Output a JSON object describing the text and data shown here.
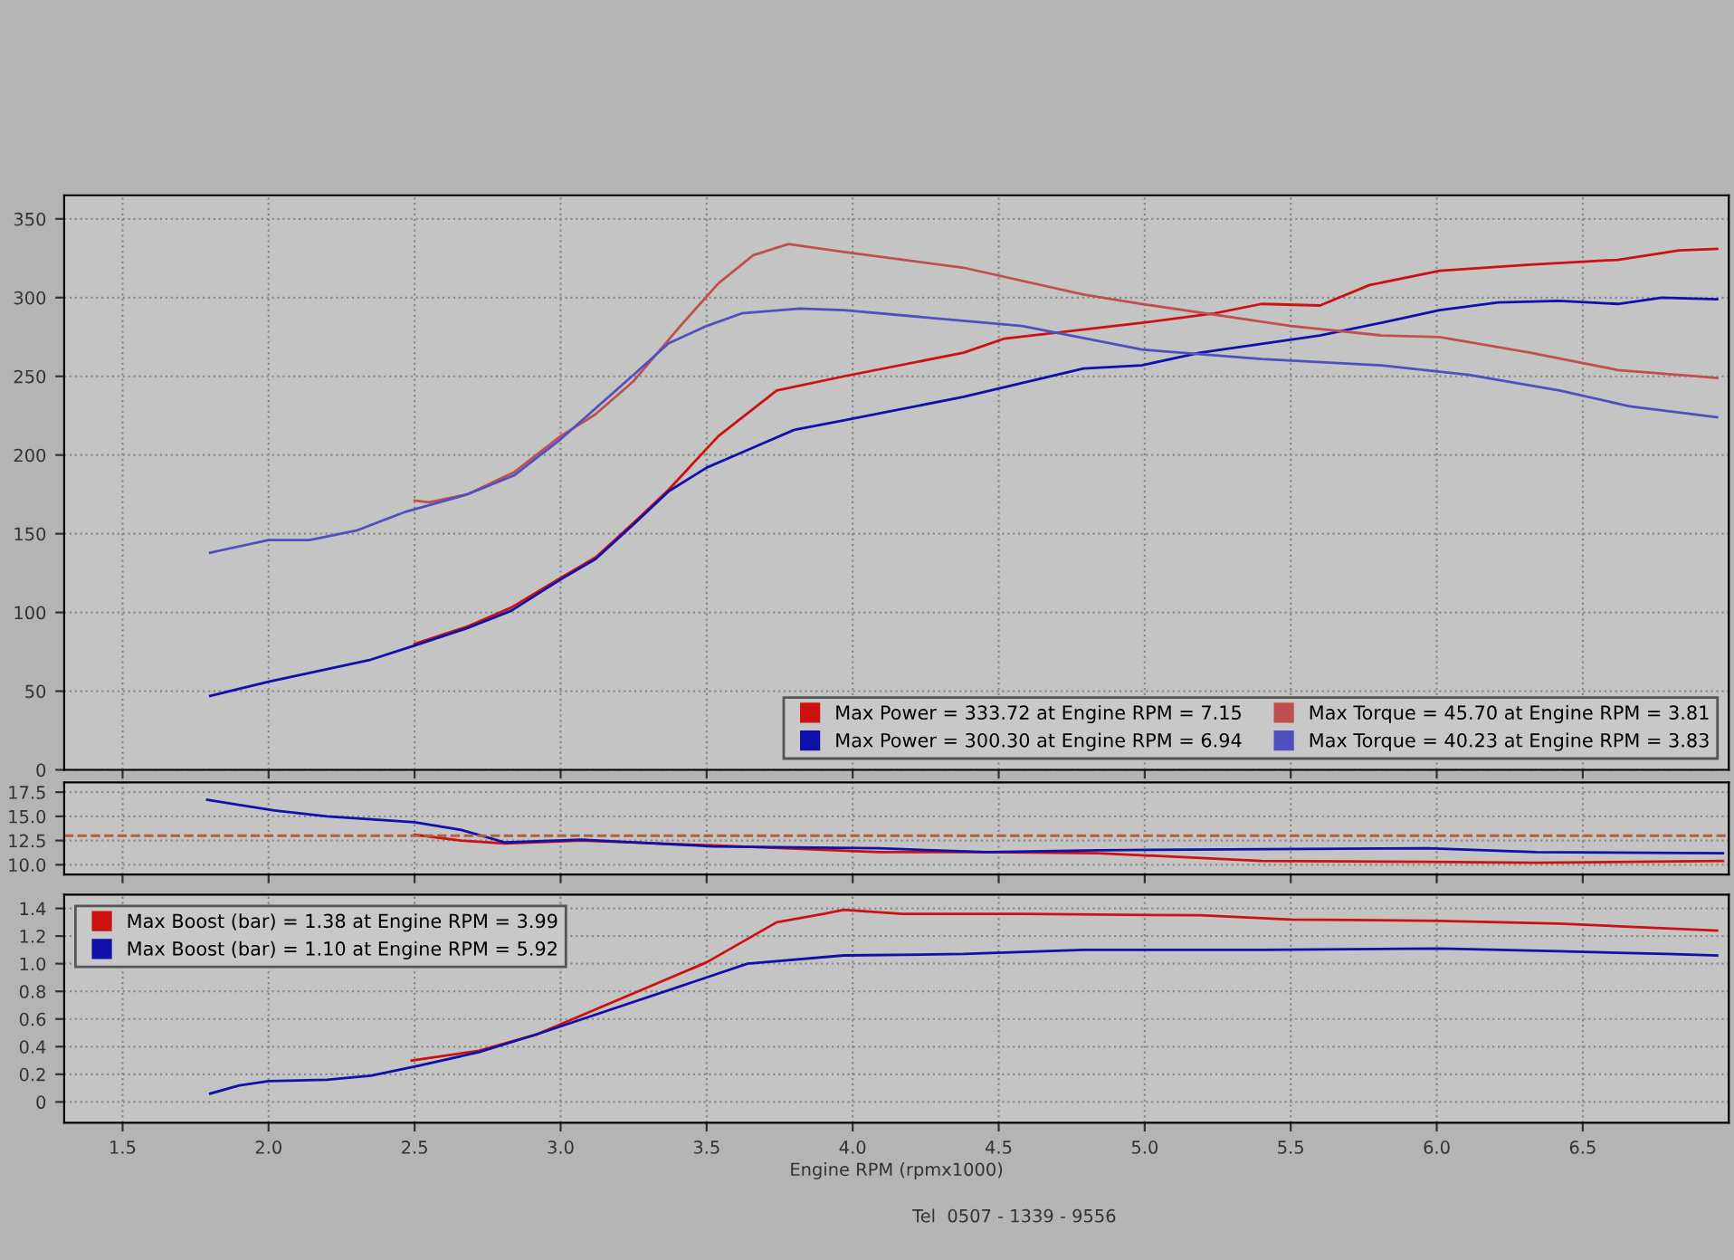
{
  "chart_data": [
    {
      "type": "line",
      "xlim": [
        1.3,
        7.0
      ],
      "xticks": [
        {
          "value": 1.5,
          "label": null
        },
        {
          "value": 2.0,
          "label": null
        },
        {
          "value": 2.5,
          "label": null
        },
        {
          "value": 3.0,
          "label": null
        },
        {
          "value": 3.5,
          "label": null
        },
        {
          "value": 4.0,
          "label": null
        },
        {
          "value": 4.5,
          "label": null
        },
        {
          "value": 5.0,
          "label": null
        },
        {
          "value": 5.5,
          "label": null
        },
        {
          "value": 6.0,
          "label": null
        },
        {
          "value": 6.5,
          "label": null
        }
      ],
      "ylim": [
        0,
        365
      ],
      "yticks": [
        0,
        50,
        100,
        150,
        200,
        250,
        300,
        350
      ],
      "tick_labels": "y",
      "grid": true,
      "legend": "bottom right",
      "line_style": "solid",
      "series": [
        {
          "name": "Max Power = 333.72 at Engine RPM = 7.15",
          "color": "#cc1111",
          "x": [
            2.5,
            2.68,
            2.83,
            3.0,
            3.12,
            3.25,
            3.37,
            3.54,
            3.74,
            3.97,
            4.38,
            4.52,
            4.99,
            5.24,
            5.4,
            5.6,
            5.77,
            6.01,
            6.32,
            6.62,
            6.83,
            6.96
          ],
          "values": [
            80,
            91,
            103,
            122,
            135,
            157,
            178,
            212,
            241,
            250,
            265,
            274,
            284,
            290,
            296,
            295,
            308,
            317,
            321,
            324,
            330,
            331
          ]
        },
        {
          "name": "Max Power = 300.30 at Engine RPM = 6.94",
          "color": "#1010aa",
          "x": [
            1.8,
            2.0,
            2.35,
            2.5,
            2.68,
            2.83,
            3.0,
            3.12,
            3.25,
            3.37,
            3.5,
            3.65,
            3.8,
            3.97,
            4.38,
            4.79,
            4.99,
            5.19,
            5.6,
            5.81,
            6.01,
            6.21,
            6.42,
            6.62,
            6.77,
            6.96
          ],
          "values": [
            47,
            56,
            70,
            79,
            90,
            101,
            121,
            134,
            156,
            177,
            192,
            204,
            216,
            222,
            237,
            255,
            257,
            265,
            276,
            284,
            292,
            297,
            298,
            296,
            300,
            299
          ]
        },
        {
          "name": "Max Torque = 45.70 at Engine RPM = 3.81",
          "color": "#c05050",
          "x": [
            2.5,
            2.55,
            2.68,
            2.84,
            3.0,
            3.12,
            3.25,
            3.41,
            3.54,
            3.66,
            3.78,
            3.97,
            4.38,
            4.79,
            4.99,
            5.28,
            5.5,
            5.81,
            6.01,
            6.32,
            6.62,
            6.96
          ],
          "values": [
            171,
            170,
            175,
            189,
            212,
            226,
            247,
            282,
            309,
            327,
            334,
            329,
            319,
            302,
            296,
            288,
            282,
            276,
            275,
            265,
            254,
            249
          ]
        },
        {
          "name": "Max Torque = 40.23 at Engine RPM = 3.83",
          "color": "#5050c0",
          "x": [
            1.8,
            2.0,
            2.14,
            2.3,
            2.47,
            2.68,
            2.84,
            3.0,
            3.25,
            3.37,
            3.5,
            3.62,
            3.82,
            3.97,
            4.58,
            4.99,
            5.4,
            5.81,
            6.11,
            6.42,
            6.66,
            6.96
          ],
          "values": [
            138,
            146,
            146,
            152,
            164,
            175,
            187,
            210,
            251,
            271,
            282,
            290,
            293,
            292,
            282,
            267,
            261,
            257,
            251,
            241,
            231,
            224
          ]
        }
      ]
    },
    {
      "type": "line",
      "xlim": [
        1.3,
        7.0
      ],
      "xticks": [
        {
          "value": 1.5,
          "label": null
        },
        {
          "value": 2.0,
          "label": null
        },
        {
          "value": 2.5,
          "label": null
        },
        {
          "value": 3.0,
          "label": null
        },
        {
          "value": 3.5,
          "label": null
        },
        {
          "value": 4.0,
          "label": null
        },
        {
          "value": 4.5,
          "label": null
        },
        {
          "value": 5.0,
          "label": null
        },
        {
          "value": 5.5,
          "label": null
        },
        {
          "value": 6.0,
          "label": null
        },
        {
          "value": 6.5,
          "label": null
        }
      ],
      "ylim": [
        9.0,
        18.5
      ],
      "yticks": [
        {
          "value": 10.0,
          "label": "10.0"
        },
        12.5,
        {
          "value": 15.0,
          "label": "15.0"
        },
        17.5
      ],
      "tick_labels": "y",
      "grid": true,
      "line_style": "solid",
      "ref_lines": [
        {
          "axis": "y",
          "value": 13.0,
          "label": null,
          "color": "#b06040",
          "line_style": "dashed"
        }
      ],
      "series": [
        {
          "color": "#cc1111",
          "x": [
            2.5,
            2.66,
            2.81,
            3.07,
            3.52,
            4.09,
            4.46,
            4.84,
            5.4,
            5.97,
            6.34,
            6.98
          ],
          "values": [
            13.1,
            12.5,
            12.2,
            12.5,
            12.0,
            11.3,
            11.3,
            11.2,
            10.4,
            10.3,
            10.2,
            10.4
          ]
        },
        {
          "color": "#1010aa",
          "x": [
            1.79,
            2.02,
            2.2,
            2.5,
            2.66,
            2.81,
            3.07,
            3.52,
            4.09,
            4.46,
            4.84,
            5.97,
            6.34,
            6.98
          ],
          "values": [
            16.7,
            15.6,
            15.0,
            14.4,
            13.6,
            12.3,
            12.6,
            11.9,
            11.7,
            11.3,
            11.5,
            11.7,
            11.3,
            11.2
          ]
        }
      ]
    },
    {
      "type": "line",
      "xlim": [
        1.3,
        7.0
      ],
      "xticks": [
        {
          "value": 1.5,
          "label": "1.5"
        },
        {
          "value": 2.0,
          "label": "2.0"
        },
        {
          "value": 2.5,
          "label": "2.5"
        },
        {
          "value": 3.0,
          "label": "3.0"
        },
        {
          "value": 3.5,
          "label": "3.5"
        },
        {
          "value": 4.0,
          "label": "4.0"
        },
        {
          "value": 4.5,
          "label": "4.5"
        },
        {
          "value": 5.0,
          "label": "5.0"
        },
        {
          "value": 5.5,
          "label": "5.5"
        },
        {
          "value": 6.0,
          "label": "6.0"
        },
        {
          "value": 6.5,
          "label": "6.5"
        }
      ],
      "ylim": [
        -0.15,
        1.5
      ],
      "yticks": [
        0,
        0.2,
        0.4,
        0.6,
        0.8,
        {
          "value": 1.0,
          "label": "1.0"
        },
        1.2,
        1.4
      ],
      "xlabel": "Engine RPM (rpmx1000)",
      "grid": true,
      "legend": "top left",
      "line_style": "solid",
      "annotations": [
        "Tel  0507 - 1339 - 9556"
      ],
      "series": [
        {
          "name": "Max Boost (bar) = 1.38 at Engine RPM = 3.99",
          "color": "#cc1111",
          "x": [
            2.49,
            2.72,
            2.92,
            3.5,
            3.74,
            3.9,
            3.97,
            4.17,
            4.58,
            5.19,
            5.5,
            6.01,
            6.42,
            6.96
          ],
          "values": [
            0.3,
            0.37,
            0.49,
            1.01,
            1.3,
            1.36,
            1.39,
            1.36,
            1.36,
            1.35,
            1.32,
            1.31,
            1.29,
            1.24
          ]
        },
        {
          "name": "Max Boost (bar) = 1.10 at Engine RPM = 5.92",
          "color": "#1010aa",
          "x": [
            1.8,
            1.9,
            2.0,
            2.2,
            2.35,
            2.51,
            2.72,
            2.92,
            3.64,
            3.97,
            4.38,
            4.79,
            5.4,
            6.01,
            6.42,
            6.79,
            6.96
          ],
          "values": [
            0.06,
            0.12,
            0.15,
            0.16,
            0.19,
            0.26,
            0.36,
            0.49,
            1.0,
            1.06,
            1.07,
            1.1,
            1.1,
            1.11,
            1.09,
            1.07,
            1.06
          ]
        }
      ]
    }
  ]
}
